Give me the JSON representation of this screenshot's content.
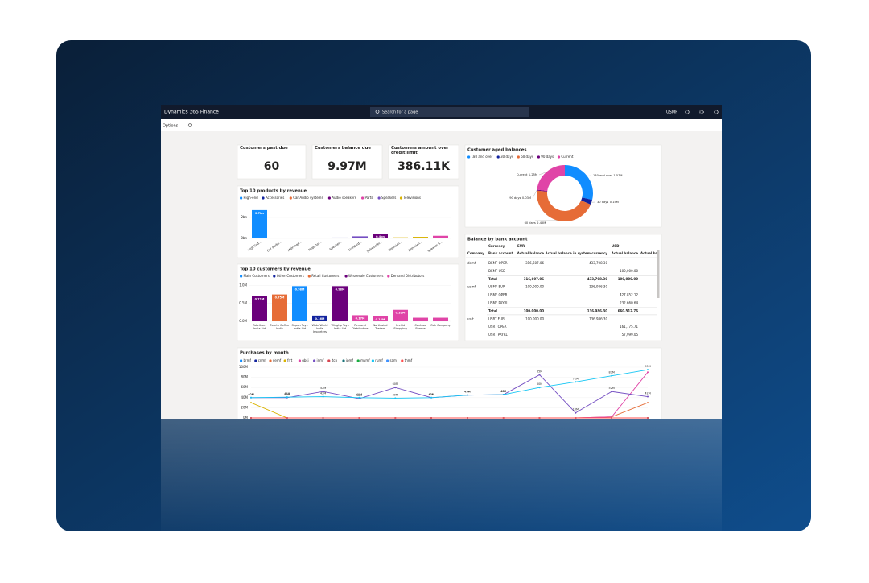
{
  "app": {
    "title": "Dynamics 365 Finance",
    "search": "Search for a page",
    "company": "USMF",
    "options": "Options"
  },
  "kpis": [
    {
      "title": "Customers past due",
      "value": "60"
    },
    {
      "title": "Customers balance due",
      "value": "9.97M"
    },
    {
      "title": "Customers amount over credit limit",
      "value": "386.11K"
    }
  ],
  "chart_data": [
    {
      "type": "bar",
      "title": "Top 10 products by revenue",
      "legend": [
        {
          "name": "High-end",
          "color": "#118dff"
        },
        {
          "name": "Accessories",
          "color": "#12239e"
        },
        {
          "name": "Car Audio systems",
          "color": "#e66c37"
        },
        {
          "name": "Audio speakers",
          "color": "#6b007b"
        },
        {
          "name": "Parts",
          "color": "#e044a7"
        },
        {
          "name": "Speakers",
          "color": "#744ec2"
        },
        {
          "name": "Televisions",
          "color": "#d9b300"
        }
      ],
      "categories": [
        "High End...",
        "Car Audio...",
        "Midrange...",
        "Projector...",
        "Speaker...",
        "Standard...",
        "Subwoofer...",
        "Television...",
        "Television...",
        "Speaker S..."
      ],
      "values": [
        2.7,
        0.07,
        0.06,
        0.06,
        0.08,
        0.2,
        0.4,
        0.1,
        0.15,
        0.25
      ],
      "value_labels": [
        "2.7bn",
        null,
        null,
        null,
        null,
        null,
        "0.4bn",
        null,
        null,
        null
      ],
      "bar_colors": [
        "#118dff",
        "#e66c37",
        "#744ec2",
        "#d9b300",
        "#12239e",
        "#744ec2",
        "#6b007b",
        "#d9b300",
        "#d9b300",
        "#e044a7"
      ],
      "ylim": [
        0,
        3
      ],
      "yticks": [
        {
          "value": 0,
          "label": "0bn"
        },
        {
          "value": 2,
          "label": "2bn"
        }
      ]
    },
    {
      "type": "bar",
      "title": "Top 10 customers by revenue",
      "legend": [
        {
          "name": "Main Customers",
          "color": "#118dff"
        },
        {
          "name": "Other Customers",
          "color": "#12239e"
        },
        {
          "name": "Retail Customers",
          "color": "#e66c37"
        },
        {
          "name": "Wholesale Customers",
          "color": "#6b007b"
        },
        {
          "name": "Demand Distributors",
          "color": "#e044a7"
        }
      ],
      "categories": [
        "Fabrikam India Ltd",
        "Fourth Coffee India",
        "Sirpon Toys India Ltd",
        "Wide World India Importers",
        "Wingtip Toys India Ltd",
        "Remond Distributors",
        "Northwind Traders",
        "Orchid Shopping",
        "Contoso Europe",
        "Oak Company"
      ],
      "values": [
        0.71,
        0.75,
        0.98,
        0.16,
        0.98,
        0.17,
        0.14,
        0.32,
        0.1,
        0.1
      ],
      "value_labels": [
        "0.71M",
        "0.75M",
        "0.98M",
        "0.16M",
        "0.98M",
        "0.17M",
        "0.14M",
        "0.32M",
        null,
        null
      ],
      "bar_colors": [
        "#6b007b",
        "#e66c37",
        "#118dff",
        "#12239e",
        "#6b007b",
        "#e044a7",
        "#e044a7",
        "#e044a7",
        "#e044a7",
        "#e044a7"
      ],
      "ylim": [
        0,
        1.1
      ],
      "yticks": [
        {
          "value": 0,
          "label": "0.0M"
        },
        {
          "value": 0.5,
          "label": "0.5M"
        },
        {
          "value": 1,
          "label": "1.0M"
        }
      ]
    },
    {
      "type": "pie",
      "title": "Customer aged balances",
      "categories": [
        "180 and over",
        "30 days",
        "60 days",
        "90 days",
        "Current"
      ],
      "values": [
        1.57,
        0.15,
        2.45,
        0.03,
        1.25
      ],
      "value_labels": [
        "1.57M",
        "0.15M",
        "2.45M",
        "0.03M",
        "1.25M"
      ],
      "colors": [
        "#118dff",
        "#12239e",
        "#e66c37",
        "#6b007b",
        "#e044a7"
      ]
    },
    {
      "type": "line",
      "title": "Purchases by month",
      "categories": [
        null,
        null,
        null,
        null,
        null,
        null,
        null,
        null,
        null,
        null,
        null,
        null
      ],
      "ylim": [
        0,
        100
      ],
      "yticks": [
        {
          "value": 0,
          "label": "0M"
        },
        {
          "value": 20,
          "label": "20M"
        },
        {
          "value": 40,
          "label": "40M"
        },
        {
          "value": 60,
          "label": "60M"
        },
        {
          "value": 80,
          "label": "80M"
        },
        {
          "value": 100,
          "label": "100M"
        }
      ],
      "series": [
        {
          "name": "brmf",
          "color": "#118dff",
          "values": [
            0,
            0,
            0,
            0,
            0,
            0,
            0,
            0,
            0,
            0,
            0,
            0
          ]
        },
        {
          "name": "cnmf",
          "color": "#12239e",
          "values": [
            0,
            0,
            0,
            0,
            0,
            0,
            0,
            0,
            0,
            0,
            0,
            0
          ]
        },
        {
          "name": "demf",
          "color": "#e66c37",
          "values": [
            0,
            0,
            0,
            0,
            0,
            0,
            0,
            0,
            0,
            0,
            2,
            30
          ]
        },
        {
          "name": "frrt",
          "color": "#d9b300",
          "values": [
            30,
            0,
            0,
            0,
            0,
            0,
            0,
            0,
            0,
            0,
            0,
            0
          ]
        },
        {
          "name": "gbsi",
          "color": "#e044a7",
          "values": [
            0,
            0,
            0,
            0,
            0,
            0,
            0,
            0,
            0,
            0,
            2,
            90
          ]
        },
        {
          "name": "inmf",
          "color": "#744ec2",
          "values": [
            40,
            40,
            52,
            38,
            60,
            40,
            45,
            46,
            85,
            10,
            52,
            42
          ],
          "value_labels": [
            "40M",
            "40M",
            "52M",
            "38M",
            "60M",
            "40M",
            "45M",
            "46M",
            "85M",
            "10M",
            "52M",
            "42M"
          ]
        },
        {
          "name": "itco",
          "color": "#d64550",
          "values": [
            0,
            0,
            0,
            0,
            0,
            0,
            0,
            0,
            0,
            0,
            0,
            0
          ]
        },
        {
          "name": "jpmf",
          "color": "#197278",
          "values": [
            0,
            0,
            0,
            0,
            0,
            0,
            0,
            0,
            0,
            0,
            0,
            0
          ]
        },
        {
          "name": "mymf",
          "color": "#1aab40",
          "values": [
            0,
            0,
            0,
            0,
            0,
            0,
            0,
            0,
            0,
            0,
            0,
            0
          ]
        },
        {
          "name": "rumf",
          "color": "#15c6f4",
          "values": [
            40,
            41,
            42,
            40,
            39,
            40,
            45,
            46,
            60,
            71,
            83,
            95
          ],
          "value_labels": [
            "40M",
            "41M",
            "42M",
            "40M",
            "39M",
            "40M",
            "45M",
            "46M",
            "60M",
            "71M",
            "83M",
            "95M"
          ]
        },
        {
          "name": "sami",
          "color": "#4092ff",
          "values": [
            0,
            0,
            0,
            0,
            0,
            0,
            0,
            0,
            0,
            0,
            0,
            0
          ]
        },
        {
          "name": "thmf",
          "color": "#ff4f4f",
          "values": [
            0,
            0,
            0,
            0,
            0,
            0,
            0,
            0,
            0,
            0,
            0,
            0
          ]
        }
      ]
    }
  ],
  "table": {
    "title": "Balance by bank account",
    "header_top": [
      "Currency",
      "EUR",
      "USD"
    ],
    "columns": [
      "Company",
      "Bank account",
      "Actual balance",
      "Actual balance in system currency",
      "Actual balance",
      "Actual balance"
    ],
    "rows": [
      [
        "demf",
        "DEMF OPER",
        "316,607.06",
        "433,708.30",
        null
      ],
      [
        null,
        "DEMF USD",
        null,
        null,
        "100,000.00"
      ],
      [
        null,
        "Total",
        "316,607.06",
        "433,708.30",
        "100,000.00"
      ],
      [
        "usmf",
        "USMF EUR",
        "100,000.00",
        "136,986.30",
        null
      ],
      [
        null,
        "USMF OPER",
        null,
        null,
        "427,852.12"
      ],
      [
        null,
        "USMF PAYRL",
        null,
        null,
        "232,660.64"
      ],
      [
        null,
        "Total",
        "100,000.00",
        "136,986.30",
        "660,512.76"
      ],
      [
        "usrt",
        "USRT EUR",
        "100,000.00",
        "136,986.30",
        null
      ],
      [
        null,
        "USRT OPER",
        null,
        null,
        "161,775.71"
      ],
      [
        null,
        "USRT PAYRL",
        null,
        null,
        "57,999.05"
      ]
    ]
  }
}
